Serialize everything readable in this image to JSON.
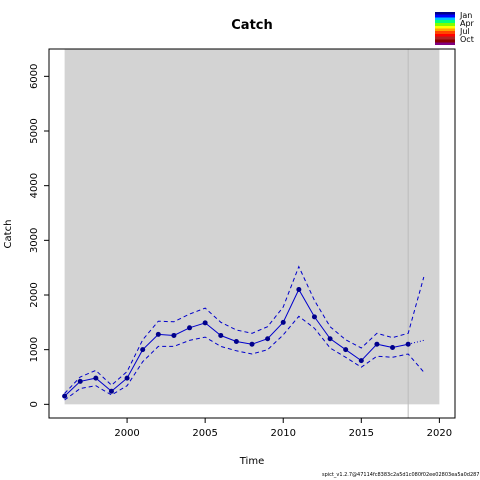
{
  "chart_data": {
    "type": "line",
    "title": "Catch",
    "xlabel": "Time",
    "ylabel": "Catch",
    "xlim": [
      1995,
      2021
    ],
    "ylim": [
      -250,
      6500
    ],
    "x_ticks": [
      2000,
      2005,
      2010,
      2015,
      2020
    ],
    "y_ticks": [
      0,
      1000,
      2000,
      3000,
      4000,
      5000,
      6000
    ],
    "shaded_period": [
      1996,
      2020
    ],
    "shade_color": "#d3d3d3",
    "vertical_line": 2018,
    "series": [
      {
        "style": "solid-with-points",
        "color": "#0000cc",
        "x": [
          1996,
          1997,
          1998,
          1999,
          2000,
          2001,
          2002,
          2003,
          2004,
          2005,
          2006,
          2007,
          2008,
          2009,
          2010,
          2011,
          2012,
          2013,
          2014,
          2015,
          2016,
          2017,
          2018
        ],
        "y": [
          150,
          420,
          480,
          240,
          480,
          1000,
          1280,
          1260,
          1400,
          1490,
          1260,
          1150,
          1100,
          1200,
          1500,
          2100,
          1600,
          1200,
          1000,
          800,
          1100,
          1040,
          1100
        ]
      },
      {
        "style": "dashed",
        "color": "#0000cc",
        "x": [
          1996,
          1997,
          1998,
          1999,
          2000,
          2001,
          2002,
          2003,
          2004,
          2005,
          2006,
          2007,
          2008,
          2009,
          2010,
          2011,
          2012,
          2013,
          2014,
          2015,
          2016,
          2017,
          2018,
          2019
        ],
        "y": [
          200,
          500,
          620,
          350,
          600,
          1180,
          1520,
          1510,
          1650,
          1760,
          1500,
          1360,
          1300,
          1420,
          1780,
          2520,
          1900,
          1420,
          1180,
          1030,
          1300,
          1220,
          1300,
          2330
        ]
      },
      {
        "style": "dashed",
        "color": "#0000cc",
        "x": [
          1996,
          1997,
          1998,
          1999,
          2000,
          2001,
          2002,
          2003,
          2004,
          2005,
          2006,
          2007,
          2008,
          2009,
          2010,
          2011,
          2012,
          2013,
          2014,
          2015,
          2016,
          2017,
          2018,
          2019
        ],
        "y": [
          80,
          290,
          340,
          170,
          340,
          780,
          1060,
          1060,
          1170,
          1230,
          1060,
          980,
          920,
          1000,
          1270,
          1610,
          1390,
          1030,
          860,
          680,
          880,
          860,
          920,
          590
        ]
      },
      {
        "style": "dotted",
        "color": "#0000cc",
        "x": [
          2018,
          2019
        ],
        "y": [
          1100,
          1170
        ]
      }
    ]
  },
  "legend": {
    "labels": [
      "Jan",
      "Apr",
      "Jul",
      "Oct"
    ],
    "colors": [
      "#00008b",
      "#0000ff",
      "#00bfff",
      "#00ff7f",
      "#7fff00",
      "#ffff00",
      "#ffa500",
      "#ff4500",
      "#ff0000",
      "#b22222",
      "#8b0000",
      "#800080"
    ]
  },
  "footer": "spict_v1.2.7@47114fc8383c2a5d1c080f02ee02803ea5a0d287"
}
